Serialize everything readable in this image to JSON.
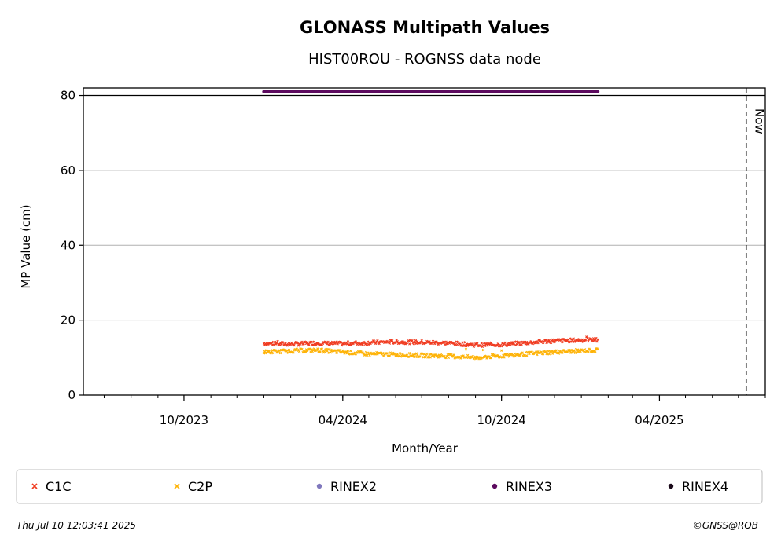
{
  "chart_data": {
    "type": "scatter",
    "title": "GLONASS Multipath Values",
    "subtitle": "HIST00ROU - ROGNSS data node",
    "xlabel": "Month/Year",
    "ylabel": "MP Value (cm)",
    "xlim": [
      "2023-06-07",
      "2025-08-01"
    ],
    "ylim": [
      0,
      82
    ],
    "x_ticks": [
      {
        "date": "2023-10-01",
        "label": "10/2023"
      },
      {
        "date": "2024-04-01",
        "label": "04/2024"
      },
      {
        "date": "2024-10-01",
        "label": "10/2024"
      },
      {
        "date": "2025-04-01",
        "label": "04/2025"
      }
    ],
    "y_ticks": [
      0,
      20,
      40,
      60,
      80
    ],
    "grid": "horizontal",
    "now_marker": {
      "date": "2025-07-10",
      "label": "Now"
    },
    "data_start": "2024-01-01",
    "data_end": "2025-01-20",
    "series": [
      {
        "name": "C1C",
        "marker": "x",
        "color": "#f03b20",
        "points": [
          [
            "2024-01-01",
            13.8
          ],
          [
            "2024-02-01",
            13.6
          ],
          [
            "2024-03-01",
            13.9
          ],
          [
            "2024-04-01",
            13.7
          ],
          [
            "2024-05-01",
            14.0
          ],
          [
            "2024-06-01",
            14.2
          ],
          [
            "2024-07-01",
            14.1
          ],
          [
            "2024-08-01",
            13.9
          ],
          [
            "2024-09-01",
            13.4
          ],
          [
            "2024-10-01",
            13.5
          ],
          [
            "2024-11-01",
            14.0
          ],
          [
            "2024-12-01",
            14.5
          ],
          [
            "2025-01-20",
            14.8
          ]
        ]
      },
      {
        "name": "C2P",
        "marker": "x",
        "color": "#feb307",
        "points": [
          [
            "2024-01-01",
            11.5
          ],
          [
            "2024-02-01",
            11.8
          ],
          [
            "2024-03-01",
            12.0
          ],
          [
            "2024-04-01",
            11.5
          ],
          [
            "2024-05-01",
            11.0
          ],
          [
            "2024-06-01",
            10.8
          ],
          [
            "2024-07-01",
            10.6
          ],
          [
            "2024-08-01",
            10.4
          ],
          [
            "2024-09-01",
            10.0
          ],
          [
            "2024-10-01",
            10.5
          ],
          [
            "2024-11-01",
            11.0
          ],
          [
            "2024-12-01",
            11.5
          ],
          [
            "2025-01-20",
            12.0
          ]
        ]
      },
      {
        "name": "RINEX3",
        "marker": "o",
        "color": "#5c0a5e",
        "points": [
          [
            "2024-01-01",
            81
          ],
          [
            "2025-01-20",
            81
          ]
        ]
      }
    ],
    "legend": {
      "placement": "bottom",
      "entries": [
        {
          "name": "C1C",
          "marker": "x",
          "color": "#f03b20"
        },
        {
          "name": "C2P",
          "marker": "x",
          "color": "#feb307"
        },
        {
          "name": "RINEX2",
          "marker": "o",
          "color": "#8078bd"
        },
        {
          "name": "RINEX3",
          "marker": "o",
          "color": "#5c0a5e"
        },
        {
          "name": "RINEX4",
          "marker": "o",
          "color": "#1a0a1a"
        }
      ]
    }
  },
  "footer": {
    "timestamp": "Thu Jul 10 12:03:41 2025",
    "credit": "©GNSS@ROB"
  }
}
